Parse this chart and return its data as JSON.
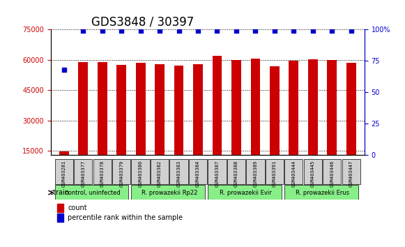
{
  "title": "GDS3848 / 30397",
  "samples": [
    "GSM403281",
    "GSM403377",
    "GSM403378",
    "GSM403379",
    "GSM403380",
    "GSM403382",
    "GSM403383",
    "GSM403384",
    "GSM403387",
    "GSM403388",
    "GSM403389",
    "GSM403391",
    "GSM403444",
    "GSM403445",
    "GSM403446",
    "GSM403447"
  ],
  "counts": [
    14500,
    59000,
    58800,
    57500,
    58500,
    57800,
    57200,
    58000,
    62000,
    60000,
    60500,
    57000,
    59500,
    60200,
    59800,
    58500
  ],
  "percentile": [
    68,
    99,
    99,
    99,
    99,
    99,
    99,
    99,
    99,
    99,
    99,
    99,
    99,
    99,
    99,
    99
  ],
  "bar_color": "#cc0000",
  "dot_color": "#0000cc",
  "ylim_left": [
    13000,
    75000
  ],
  "yticks_left": [
    15000,
    30000,
    45000,
    60000,
    75000
  ],
  "ylim_right": [
    0,
    100
  ],
  "yticks_right": [
    0,
    25,
    50,
    75,
    100
  ],
  "right_tick_labels": [
    "0",
    "25",
    "50",
    "75",
    "100%"
  ],
  "grid_color": "#000000",
  "strain_groups": [
    {
      "label": "control, uninfected",
      "start": 0,
      "end": 3,
      "color": "#aaffaa"
    },
    {
      "label": "R. prowazekii Rp22",
      "start": 4,
      "end": 7,
      "color": "#aaffaa"
    },
    {
      "label": "R. prowazekii Evir",
      "start": 8,
      "end": 11,
      "color": "#aaffaa"
    },
    {
      "label": "R. prowazekii Erus",
      "start": 12,
      "end": 15,
      "color": "#aaffaa"
    }
  ],
  "strain_label": "strain",
  "legend_count_label": "count",
  "legend_percentile_label": "percentile rank within the sample",
  "title_fontsize": 12,
  "axis_fontsize": 8,
  "tick_fontsize": 7,
  "bar_width": 0.5,
  "bg_color": "#e8e8e8",
  "plot_bg": "#ffffff"
}
